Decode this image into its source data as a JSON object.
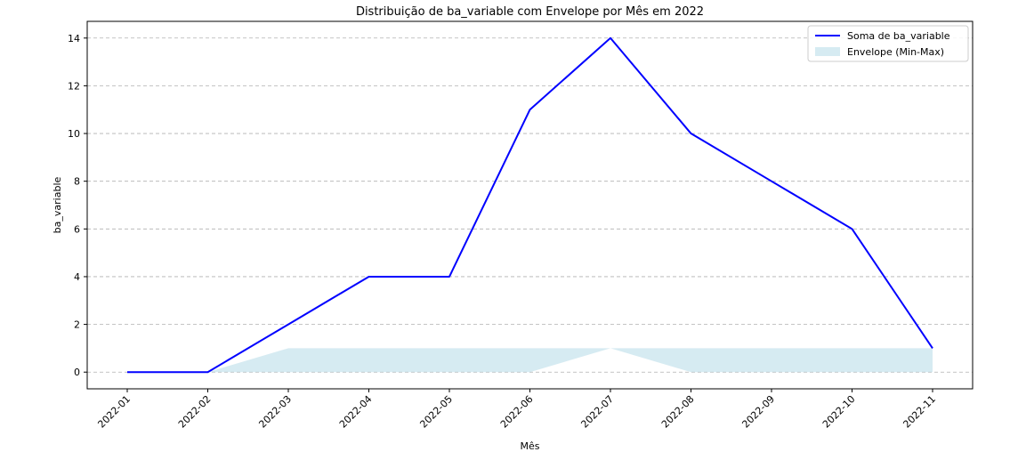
{
  "chart_data": {
    "type": "line",
    "title": "Distribuição de ba_variable com Envelope por Mês em 2022",
    "xlabel": "Mês",
    "ylabel": "ba_variable",
    "categories": [
      "2022-01",
      "2022-02",
      "2022-03",
      "2022-04",
      "2022-05",
      "2022-06",
      "2022-07",
      "2022-08",
      "2022-09",
      "2022-10",
      "2022-11"
    ],
    "series": [
      {
        "name": "Soma de ba_variable",
        "type": "line",
        "color": "#0000ff",
        "values": [
          0,
          0,
          2,
          4,
          4,
          11,
          14,
          10,
          8,
          6,
          1
        ]
      },
      {
        "name": "Envelope (Min-Max)",
        "type": "area",
        "color": "#add8e6",
        "lower": [
          0,
          0,
          0,
          0,
          0,
          0,
          1,
          0,
          0,
          0,
          0
        ],
        "upper": [
          0,
          0,
          1,
          1,
          1,
          1,
          1,
          1,
          1,
          1,
          1
        ]
      }
    ],
    "ylim": [
      -0.7,
      14.7
    ],
    "yticks": [
      0,
      2,
      4,
      6,
      8,
      10,
      12,
      14
    ],
    "grid": "y-dashed",
    "legend_position": "top-right"
  }
}
